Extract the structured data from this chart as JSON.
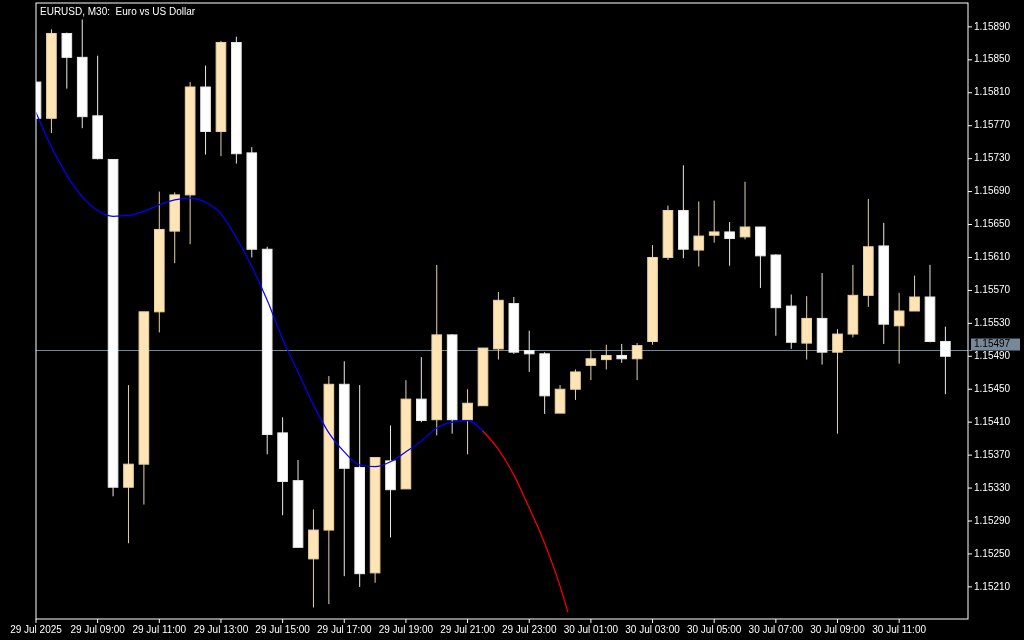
{
  "chart_data": {
    "type": "candlestick",
    "title": "EURUSD, M30:  Euro vs US Dollar",
    "x": [
      "2025-07-29T07:00",
      "2025-07-29T07:30",
      "2025-07-29T08:00",
      "2025-07-29T08:30",
      "2025-07-29T09:00",
      "2025-07-29T09:30",
      "2025-07-29T10:00",
      "2025-07-29T10:30",
      "2025-07-29T11:00",
      "2025-07-29T11:30",
      "2025-07-29T12:00",
      "2025-07-29T12:30",
      "2025-07-29T13:00",
      "2025-07-29T13:30",
      "2025-07-29T14:00",
      "2025-07-29T14:30",
      "2025-07-29T15:00",
      "2025-07-29T15:30",
      "2025-07-29T16:00",
      "2025-07-29T16:30",
      "2025-07-29T17:00",
      "2025-07-29T17:30",
      "2025-07-29T18:00",
      "2025-07-29T18:30",
      "2025-07-29T19:00",
      "2025-07-29T19:30",
      "2025-07-29T20:00",
      "2025-07-29T20:30",
      "2025-07-29T21:00",
      "2025-07-29T21:30",
      "2025-07-29T22:00",
      "2025-07-29T22:30",
      "2025-07-29T23:00",
      "2025-07-29T23:30",
      "2025-07-30T00:00",
      "2025-07-30T00:30",
      "2025-07-30T01:00",
      "2025-07-30T01:30",
      "2025-07-30T02:00",
      "2025-07-30T02:30",
      "2025-07-30T03:00",
      "2025-07-30T03:30",
      "2025-07-30T04:00",
      "2025-07-30T04:30",
      "2025-07-30T05:00",
      "2025-07-30T05:30",
      "2025-07-30T06:00",
      "2025-07-30T06:30",
      "2025-07-30T07:00",
      "2025-07-30T07:30",
      "2025-07-30T08:00",
      "2025-07-30T08:30",
      "2025-07-30T09:00",
      "2025-07-30T09:30",
      "2025-07-30T10:00",
      "2025-07-30T10:30",
      "2025-07-30T11:00",
      "2025-07-30T11:30",
      "2025-07-30T12:00",
      "2025-07-30T12:30"
    ],
    "ohlc": [
      [
        1.15823,
        1.15823,
        1.15779,
        1.15779
      ],
      [
        1.15779,
        1.15887,
        1.15761,
        1.15882
      ],
      [
        1.15882,
        1.15883,
        1.15815,
        1.15853
      ],
      [
        1.15853,
        1.15899,
        1.15767,
        1.15781
      ],
      [
        1.15782,
        1.15855,
        1.15729,
        1.1573
      ],
      [
        1.15729,
        1.15729,
        1.1532,
        1.15331
      ],
      [
        1.15331,
        1.15455,
        1.15263,
        1.15359
      ],
      [
        1.15359,
        1.15544,
        1.1531,
        1.15544
      ],
      [
        1.15544,
        1.1569,
        1.15519,
        1.15644
      ],
      [
        1.15642,
        1.15689,
        1.15603,
        1.15686
      ],
      [
        1.15686,
        1.15823,
        1.15626,
        1.15817
      ],
      [
        1.15817,
        1.15843,
        1.15735,
        1.15763
      ],
      [
        1.15763,
        1.15873,
        1.15733,
        1.15871
      ],
      [
        1.15871,
        1.15878,
        1.15724,
        1.15736
      ],
      [
        1.15737,
        1.15744,
        1.1561,
        1.1562
      ],
      [
        1.1562,
        1.15623,
        1.15371,
        1.15395
      ],
      [
        1.15397,
        1.15416,
        1.15297,
        1.15338
      ],
      [
        1.15339,
        1.15364,
        1.15258,
        1.15258
      ],
      [
        1.15244,
        1.15304,
        1.15185,
        1.15279
      ],
      [
        1.15279,
        1.15466,
        1.15189,
        1.15456
      ],
      [
        1.15456,
        1.15484,
        1.15223,
        1.15354
      ],
      [
        1.15355,
        1.15455,
        1.1521,
        1.15226
      ],
      [
        1.15227,
        1.15367,
        1.15215,
        1.15367
      ],
      [
        1.15363,
        1.15406,
        1.1527,
        1.15328
      ],
      [
        1.15329,
        1.15461,
        1.15329,
        1.15438
      ],
      [
        1.15438,
        1.15489,
        1.1541,
        1.15412
      ],
      [
        1.15413,
        1.15601,
        1.15394,
        1.15516
      ],
      [
        1.15516,
        1.15517,
        1.15396,
        1.15413
      ],
      [
        1.15413,
        1.1545,
        1.15371,
        1.15433
      ],
      [
        1.1543,
        1.155,
        1.1543,
        1.155
      ],
      [
        1.15499,
        1.15568,
        1.15486,
        1.15558
      ],
      [
        1.15554,
        1.15562,
        1.15493,
        1.15495
      ],
      [
        1.15497,
        1.15521,
        1.15471,
        1.15493
      ],
      [
        1.15493,
        1.15495,
        1.1542,
        1.15442
      ],
      [
        1.15421,
        1.15455,
        1.15421,
        1.1545
      ],
      [
        1.1545,
        1.15474,
        1.15437,
        1.15471
      ],
      [
        1.15479,
        1.15498,
        1.15461,
        1.15487
      ],
      [
        1.15486,
        1.15504,
        1.15474,
        1.15491
      ],
      [
        1.15491,
        1.15505,
        1.15482,
        1.15487
      ],
      [
        1.15487,
        1.15506,
        1.15461,
        1.15503
      ],
      [
        1.15508,
        1.15625,
        1.15504,
        1.1561
      ],
      [
        1.1561,
        1.15673,
        1.15607,
        1.15667
      ],
      [
        1.15667,
        1.15722,
        1.15609,
        1.1562
      ],
      [
        1.15619,
        1.15678,
        1.15599,
        1.15636
      ],
      [
        1.15637,
        1.15679,
        1.15628,
        1.15641
      ],
      [
        1.15641,
        1.15653,
        1.156,
        1.15633
      ],
      [
        1.15635,
        1.15702,
        1.15632,
        1.15647
      ],
      [
        1.15647,
        1.15647,
        1.15573,
        1.15612
      ],
      [
        1.15613,
        1.15614,
        1.15515,
        1.15549
      ],
      [
        1.15551,
        1.15565,
        1.15499,
        1.15507
      ],
      [
        1.15506,
        1.15563,
        1.15486,
        1.15536
      ],
      [
        1.15536,
        1.15591,
        1.1548,
        1.15495
      ],
      [
        1.15495,
        1.15523,
        1.15396,
        1.15517
      ],
      [
        1.15517,
        1.15601,
        1.15513,
        1.15564
      ],
      [
        1.15564,
        1.15681,
        1.1555,
        1.15623
      ],
      [
        1.15624,
        1.15652,
        1.15505,
        1.15529
      ],
      [
        1.15527,
        1.15567,
        1.15481,
        1.15545
      ],
      [
        1.15545,
        1.15588,
        1.15545,
        1.15562
      ],
      [
        1.15562,
        1.15601,
        1.15507,
        1.15508
      ],
      [
        1.15508,
        1.15526,
        1.15444,
        1.1549
      ]
    ],
    "colors": [
      "#ffffff",
      "#ffe4b5",
      "#ffffff",
      "#ffffff",
      "#ffffff",
      "#ffffff",
      "#ffe4b5",
      "#ffe4b5",
      "#ffe4b5",
      "#ffe4b5",
      "#ffe4b5",
      "#ffffff",
      "#ffe4b5",
      "#ffffff",
      "#ffffff",
      "#ffffff",
      "#ffffff",
      "#ffffff",
      "#ffe4b5",
      "#ffe4b5",
      "#ffffff",
      "#ffffff",
      "#ffe4b5",
      "#ffffff",
      "#ffe4b5",
      "#ffffff",
      "#ffe4b5",
      "#ffffff",
      "#ffe4b5",
      "#ffe4b5",
      "#ffe4b5",
      "#ffffff",
      "#ffffff",
      "#ffffff",
      "#ffe4b5",
      "#ffe4b5",
      "#ffe4b5",
      "#ffe4b5",
      "#ffffff",
      "#ffe4b5",
      "#ffe4b5",
      "#ffe4b5",
      "#ffffff",
      "#ffe4b5",
      "#ffe4b5",
      "#ffffff",
      "#ffe4b5",
      "#ffffff",
      "#ffffff",
      "#ffffff",
      "#ffe4b5",
      "#ffffff",
      "#ffe4b5",
      "#ffe4b5",
      "#ffe4b5",
      "#ffffff",
      "#ffe4b5",
      "#ffe4b5",
      "#ffffff",
      "#ffffff"
    ],
    "series": [
      {
        "type": "line",
        "color": "#0000ff",
        "x": [
          "2025-07-29T07:00",
          "2025-07-29T07:30",
          "2025-07-29T08:00",
          "2025-07-29T08:30",
          "2025-07-29T09:00",
          "2025-07-29T09:30",
          "2025-07-29T10:00",
          "2025-07-29T10:30",
          "2025-07-29T11:00",
          "2025-07-29T11:30",
          "2025-07-29T12:00",
          "2025-07-29T12:30",
          "2025-07-29T13:00",
          "2025-07-29T13:30",
          "2025-07-29T14:00",
          "2025-07-29T14:30",
          "2025-07-29T15:00",
          "2025-07-29T15:30",
          "2025-07-29T16:00",
          "2025-07-29T16:30",
          "2025-07-29T17:00",
          "2025-07-29T17:30",
          "2025-07-29T18:00",
          "2025-07-29T18:30",
          "2025-07-29T19:00",
          "2025-07-29T19:30",
          "2025-07-29T20:00",
          "2025-07-29T20:30",
          "2025-07-29T21:00",
          "2025-07-29T21:30"
        ],
        "values": [
          1.15786,
          1.15744,
          1.1571,
          1.15684,
          1.15667,
          1.1566,
          1.15661,
          1.15666,
          1.15674,
          1.1568,
          1.15682,
          1.15677,
          1.15663,
          1.15634,
          1.15599,
          1.15558,
          1.15511,
          1.15471,
          1.15431,
          1.15397,
          1.15374,
          1.15358,
          1.15356,
          1.15362,
          1.15374,
          1.15387,
          1.15403,
          1.1541,
          1.15412,
          1.15399
        ]
      },
      {
        "type": "line",
        "color": "#ff0000",
        "x": [
          "2025-07-29T21:30",
          "2025-07-29T22:00",
          "2025-07-29T22:30",
          "2025-07-29T23:00",
          "2025-07-29T23:30",
          "2025-07-30T00:00",
          "2025-07-30T00:15"
        ],
        "values": [
          1.15399,
          1.15377,
          1.15346,
          1.15306,
          1.15263,
          1.15211,
          1.1518
        ]
      }
    ],
    "xlim": [
      "2025-07-29T07:00",
      "2025-07-30T13:14"
    ],
    "xticks": [
      {
        "value": "2025-07-29T07:00",
        "label": "29 Jul 2025"
      },
      {
        "value": "2025-07-29T09:00",
        "label": "29 Jul 09:00"
      },
      {
        "value": "2025-07-29T11:00",
        "label": "29 Jul 11:00"
      },
      {
        "value": "2025-07-29T13:00",
        "label": "29 Jul 13:00"
      },
      {
        "value": "2025-07-29T15:00",
        "label": "29 Jul 15:00"
      },
      {
        "value": "2025-07-29T17:00",
        "label": "29 Jul 17:00"
      },
      {
        "value": "2025-07-29T19:00",
        "label": "29 Jul 19:00"
      },
      {
        "value": "2025-07-29T21:00",
        "label": "29 Jul 21:00"
      },
      {
        "value": "2025-07-29T23:00",
        "label": "29 Jul 23:00"
      },
      {
        "value": "2025-07-30T01:00",
        "label": "30 Jul 01:00"
      },
      {
        "value": "2025-07-30T03:00",
        "label": "30 Jul 03:00"
      },
      {
        "value": "2025-07-30T05:00",
        "label": "30 Jul 05:00"
      },
      {
        "value": "2025-07-30T07:00",
        "label": "30 Jul 07:00"
      },
      {
        "value": "2025-07-30T09:00",
        "label": "30 Jul 09:00"
      },
      {
        "value": "2025-07-30T11:00",
        "label": "30 Jul 11:00"
      }
    ],
    "ylim": [
      1.15171,
      1.15919
    ],
    "yticks": [
      {
        "value": 1.1521,
        "label": "1.15210"
      },
      {
        "value": 1.1525,
        "label": "1.15250"
      },
      {
        "value": 1.1529,
        "label": "1.15290"
      },
      {
        "value": 1.1533,
        "label": "1.15330"
      },
      {
        "value": 1.1537,
        "label": "1.15370"
      },
      {
        "value": 1.1541,
        "label": "1.15410"
      },
      {
        "value": 1.1545,
        "label": "1.15450"
      },
      {
        "value": 1.1549,
        "label": "1.15490"
      },
      {
        "value": 1.1553,
        "label": "1.15530"
      },
      {
        "value": 1.1557,
        "label": "1.15570"
      },
      {
        "value": 1.1561,
        "label": "1.15610"
      },
      {
        "value": 1.1565,
        "label": "1.15650"
      },
      {
        "value": 1.1569,
        "label": "1.15690"
      },
      {
        "value": 1.1573,
        "label": "1.15730"
      },
      {
        "value": 1.1577,
        "label": "1.15770"
      },
      {
        "value": 1.1581,
        "label": "1.15810"
      },
      {
        "value": 1.1585,
        "label": "1.15850"
      },
      {
        "value": 1.1589,
        "label": "1.15890"
      }
    ],
    "ref_lines": [
      {
        "axis": "y",
        "value": 1.15497,
        "label": "1.15497",
        "color": "#778899"
      }
    ]
  }
}
